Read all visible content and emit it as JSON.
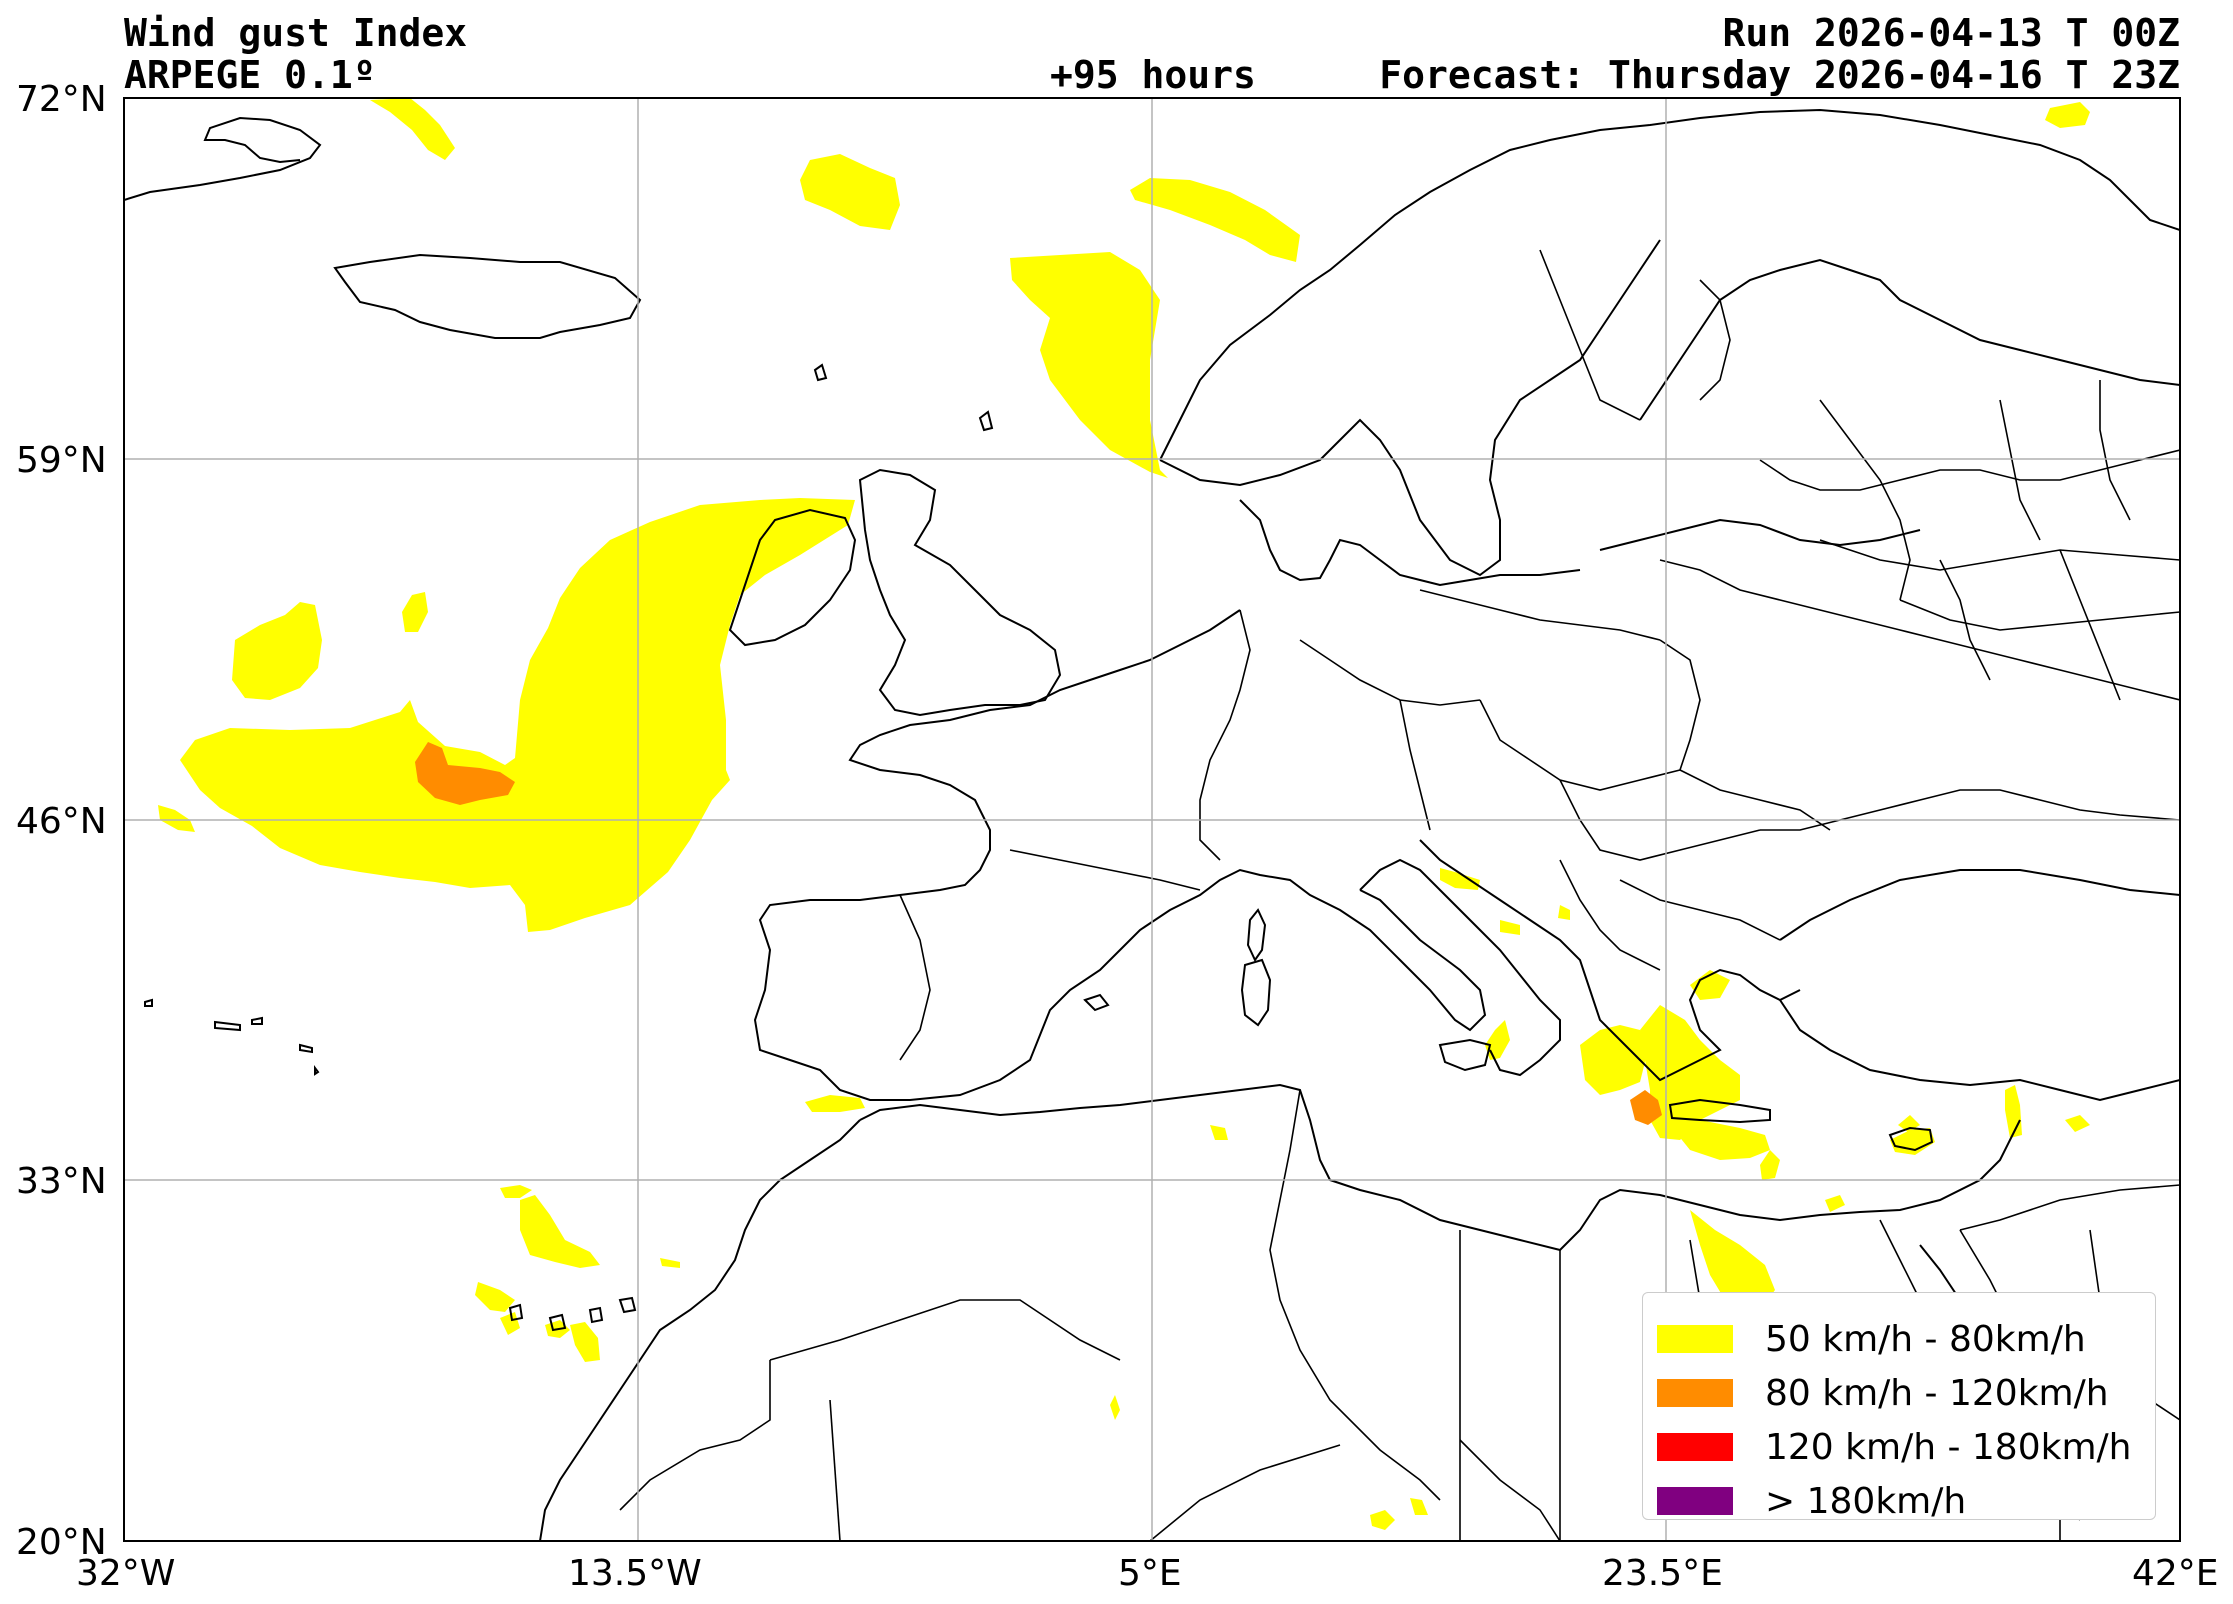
{
  "header": {
    "title": "Wind gust Index",
    "model": "ARPEGE 0.1º",
    "run": "Run 2026-04-13 T 00Z",
    "lead": "+95 hours",
    "forecast": "Forecast: Thursday 2026-04-16 T 23Z"
  },
  "axes": {
    "lon_ticks": [
      "32°W",
      "13.5°W",
      "5°E",
      "23.5°E",
      "42°E"
    ],
    "lat_ticks": [
      "72°N",
      "59°N",
      "46°N",
      "33°N",
      "20°N"
    ],
    "lon_range": [
      -32,
      42
    ],
    "lat_range": [
      20,
      72
    ],
    "grid": true
  },
  "legend": {
    "placement": "bottom-right",
    "items": [
      {
        "label": "50 km/h - 80km/h",
        "color": "#ffff00"
      },
      {
        "label": "80 km/h - 120km/h",
        "color": "#ff8c00"
      },
      {
        "label": "120 km/h - 180km/h",
        "color": "#ff0000"
      },
      {
        "label": "> 180km/h",
        "color": "#800080"
      }
    ]
  },
  "colors": {
    "band_50_80": "#ffff00",
    "band_80_120": "#ff8c00",
    "gridline": "#b0b0b0",
    "coastline": "#000000"
  }
}
